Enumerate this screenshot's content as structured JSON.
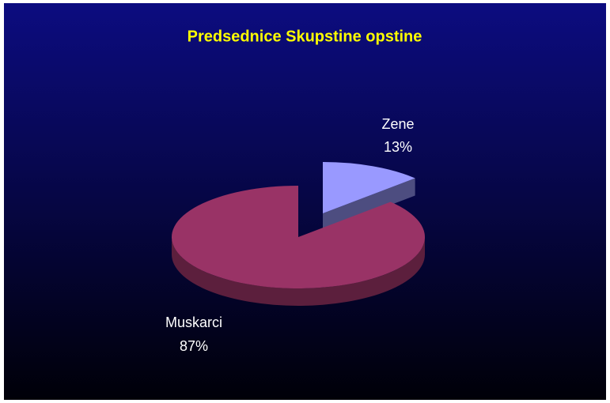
{
  "chart_data": {
    "type": "pie",
    "title": "Predsednice Skupstine opstine",
    "categories": [
      "Zene",
      "Muskarci"
    ],
    "values": [
      13,
      87
    ],
    "value_labels": [
      "13%",
      "87%"
    ],
    "colors": [
      "#9999ff",
      "#993366"
    ]
  }
}
